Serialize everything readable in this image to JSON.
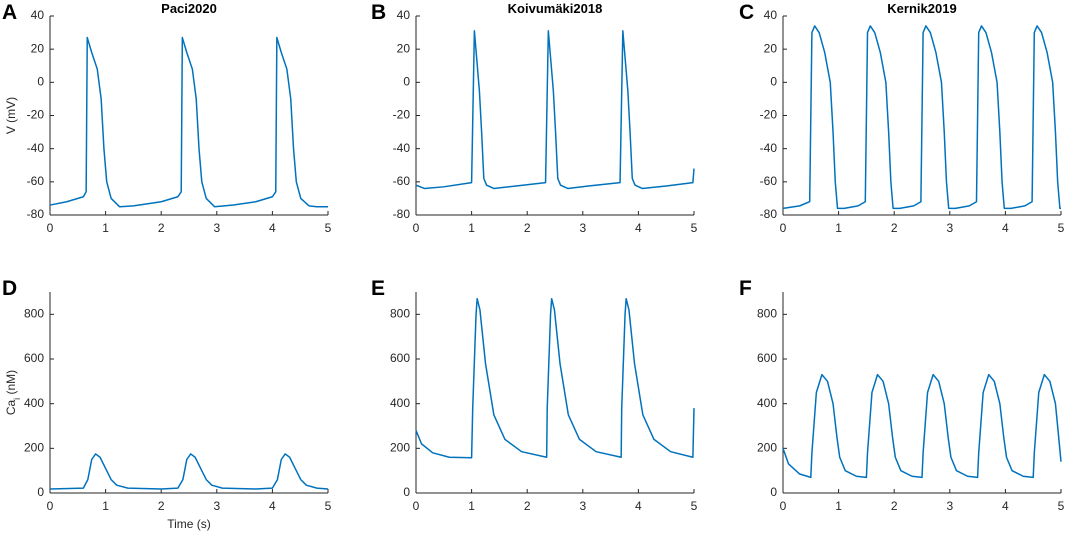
{
  "chart_data": [
    {
      "type": "line",
      "label": "A",
      "title": "Paci2020",
      "ylabel": [
        "V (mV)"
      ],
      "color": "#0072bd",
      "xlim": [
        0,
        5
      ],
      "ylim": [
        -80,
        40
      ],
      "xticks": [
        0,
        1,
        2,
        3,
        4,
        5
      ],
      "yticks": [
        -80,
        -60,
        -40,
        -20,
        0,
        20,
        40
      ],
      "x": [
        0,
        0.3,
        0.6,
        0.65,
        0.67,
        0.75,
        0.85,
        0.92,
        0.97,
        1.02,
        1.1,
        1.25,
        1.5,
        2.0,
        2.3,
        2.36,
        2.38,
        2.46,
        2.56,
        2.63,
        2.68,
        2.73,
        2.81,
        2.96,
        3.3,
        3.7,
        4.0,
        4.06,
        4.08,
        4.16,
        4.26,
        4.33,
        4.38,
        4.43,
        4.51,
        4.66,
        4.8,
        5
      ],
      "values": [
        -74,
        -72,
        -69,
        -66,
        27,
        18,
        8,
        -10,
        -40,
        -60,
        -70,
        -75,
        -74.5,
        -72,
        -69,
        -66,
        27,
        18,
        8,
        -10,
        -40,
        -60,
        -70,
        -75,
        -74,
        -72,
        -69,
        -66,
        27,
        18,
        8,
        -10,
        -40,
        -60,
        -70,
        -74.5,
        -75,
        -75
      ]
    },
    {
      "type": "line",
      "label": "B",
      "title": "Koivumäki2018",
      "color": "#0072bd",
      "xlim": [
        0,
        5
      ],
      "ylim": [
        -80,
        40
      ],
      "xticks": [
        0,
        1,
        2,
        3,
        4,
        5
      ],
      "yticks": [
        -80,
        -60,
        -40,
        -20,
        0,
        20,
        40
      ],
      "x": [
        0,
        0.15,
        0.5,
        1.0,
        1.05,
        1.09,
        1.14,
        1.18,
        1.22,
        1.27,
        1.4,
        1.8,
        2.33,
        2.38,
        2.42,
        2.47,
        2.51,
        2.55,
        2.6,
        2.73,
        3.1,
        3.67,
        3.72,
        3.76,
        3.81,
        3.85,
        3.89,
        3.94,
        4.07,
        4.5,
        4.98,
        5
      ],
      "values": [
        -62,
        -64,
        -63,
        -60.5,
        31,
        15,
        -5,
        -30,
        -58,
        -62,
        -64,
        -62.5,
        -60.5,
        31,
        15,
        -5,
        -30,
        -58,
        -62,
        -64,
        -62.5,
        -60.5,
        31,
        15,
        -5,
        -30,
        -58,
        -62,
        -64,
        -62.5,
        -60.5,
        -52
      ]
    },
    {
      "type": "line",
      "label": "C",
      "title": "Kernik2019",
      "color": "#0072bd",
      "xlim": [
        0,
        5
      ],
      "ylim": [
        -80,
        40
      ],
      "xticks": [
        0,
        1,
        2,
        3,
        4,
        5
      ],
      "yticks": [
        -80,
        -60,
        -40,
        -20,
        0,
        20,
        40
      ],
      "x": [
        0,
        0.3,
        0.48,
        0.52,
        0.57,
        0.65,
        0.75,
        0.85,
        0.9,
        0.94,
        0.98,
        1.1,
        1.35,
        1.48,
        1.52,
        1.57,
        1.65,
        1.75,
        1.85,
        1.9,
        1.94,
        1.98,
        2.1,
        2.35,
        2.48,
        2.52,
        2.57,
        2.65,
        2.75,
        2.85,
        2.9,
        2.94,
        2.98,
        3.1,
        3.35,
        3.48,
        3.52,
        3.57,
        3.65,
        3.75,
        3.85,
        3.9,
        3.94,
        3.98,
        4.1,
        4.35,
        4.48,
        4.52,
        4.57,
        4.65,
        4.75,
        4.85,
        4.9,
        4.94,
        4.98,
        5
      ],
      "values": [
        -76,
        -74.5,
        -72,
        30,
        34,
        30,
        18,
        0,
        -30,
        -60,
        -76,
        -76,
        -74.5,
        -72,
        30,
        34,
        30,
        18,
        0,
        -30,
        -60,
        -76,
        -76,
        -74.5,
        -72,
        30,
        34,
        30,
        18,
        0,
        -30,
        -60,
        -76,
        -76,
        -74.5,
        -72,
        30,
        34,
        30,
        18,
        0,
        -30,
        -60,
        -76,
        -76,
        -74.5,
        -72,
        30,
        34,
        30,
        18,
        0,
        -30,
        -60,
        -76,
        -76
      ]
    },
    {
      "type": "line",
      "label": "D",
      "ylabel": [
        "Ca",
        "i",
        " (nM)"
      ],
      "xlabel": "Time (s)",
      "color": "#0072bd",
      "xlim": [
        0,
        5
      ],
      "ylim": [
        0,
        900
      ],
      "xticks": [
        0,
        1,
        2,
        3,
        4,
        5
      ],
      "yticks": [
        0,
        200,
        400,
        600,
        800
      ],
      "x": [
        0,
        0.6,
        0.68,
        0.75,
        0.82,
        0.9,
        1.0,
        1.1,
        1.2,
        1.4,
        2.0,
        2.3,
        2.39,
        2.46,
        2.53,
        2.61,
        2.71,
        2.81,
        2.91,
        3.1,
        3.7,
        4.0,
        4.09,
        4.16,
        4.23,
        4.31,
        4.41,
        4.51,
        4.61,
        4.8,
        5
      ],
      "values": [
        18,
        22,
        60,
        150,
        175,
        160,
        110,
        60,
        35,
        22,
        18,
        22,
        60,
        150,
        175,
        160,
        110,
        60,
        35,
        22,
        18,
        22,
        60,
        150,
        175,
        160,
        110,
        60,
        35,
        22,
        18
      ]
    },
    {
      "type": "line",
      "label": "E",
      "color": "#0072bd",
      "xlim": [
        0,
        5
      ],
      "ylim": [
        0,
        900
      ],
      "xticks": [
        0,
        1,
        2,
        3,
        4,
        5
      ],
      "yticks": [
        0,
        200,
        400,
        600,
        800
      ],
      "x": [
        0,
        0.1,
        0.3,
        0.6,
        1.0,
        1.02,
        1.08,
        1.1,
        1.15,
        1.25,
        1.4,
        1.6,
        1.9,
        2.35,
        2.36,
        2.42,
        2.44,
        2.49,
        2.59,
        2.74,
        2.94,
        3.24,
        3.69,
        3.7,
        3.76,
        3.78,
        3.83,
        3.93,
        4.08,
        4.28,
        4.58,
        4.98,
        5
      ],
      "values": [
        280,
        220,
        180,
        160,
        158,
        380,
        800,
        870,
        820,
        580,
        350,
        240,
        185,
        160,
        380,
        800,
        870,
        820,
        580,
        350,
        240,
        185,
        160,
        380,
        800,
        870,
        820,
        580,
        350,
        240,
        185,
        160,
        380
      ]
    },
    {
      "type": "line",
      "label": "F",
      "color": "#0072bd",
      "xlim": [
        0,
        5
      ],
      "ylim": [
        0,
        900
      ],
      "xticks": [
        0,
        1,
        2,
        3,
        4,
        5
      ],
      "yticks": [
        0,
        200,
        400,
        600,
        800
      ],
      "x": [
        0,
        0.1,
        0.3,
        0.5,
        0.52,
        0.6,
        0.7,
        0.8,
        0.9,
        0.97,
        1.02,
        1.12,
        1.32,
        1.5,
        1.52,
        1.6,
        1.7,
        1.8,
        1.9,
        1.97,
        2.02,
        2.12,
        2.32,
        2.5,
        2.52,
        2.6,
        2.7,
        2.8,
        2.9,
        2.97,
        3.02,
        3.12,
        3.32,
        3.5,
        3.52,
        3.6,
        3.7,
        3.8,
        3.9,
        3.97,
        4.02,
        4.12,
        4.32,
        4.5,
        4.52,
        4.6,
        4.7,
        4.8,
        4.9,
        4.97,
        5
      ],
      "values": [
        200,
        130,
        85,
        70,
        180,
        450,
        530,
        500,
        400,
        250,
        160,
        100,
        75,
        70,
        180,
        450,
        530,
        500,
        400,
        250,
        160,
        100,
        75,
        70,
        180,
        450,
        530,
        500,
        400,
        250,
        160,
        100,
        75,
        70,
        180,
        450,
        530,
        500,
        400,
        250,
        160,
        100,
        75,
        70,
        180,
        450,
        530,
        500,
        400,
        220,
        140
      ]
    }
  ]
}
